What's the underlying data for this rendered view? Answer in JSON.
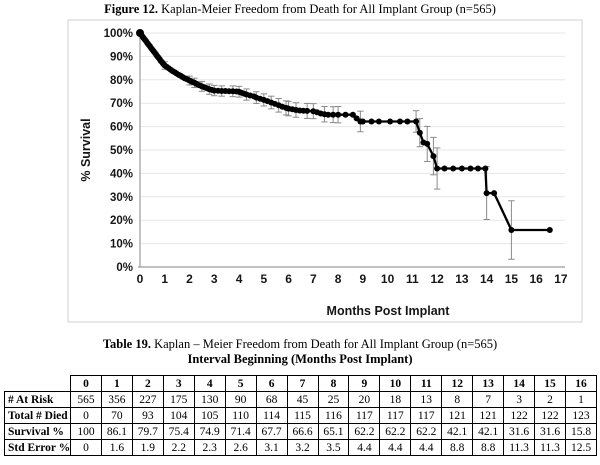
{
  "figure": {
    "title_bold": "Figure 12.",
    "title_rest": " Kaplan-Meier Freedom from Death for All Implant Group (n=565)"
  },
  "chart_data": {
    "type": "line",
    "title": "Kaplan-Meier Freedom from Death for All Implant Group (n=565)",
    "xlabel": "Months Post Implant",
    "ylabel": "% Survival",
    "xlim": [
      0,
      17
    ],
    "ylim": [
      0,
      100
    ],
    "x_ticks": [
      "0",
      "1",
      "2",
      "3",
      "4",
      "5",
      "6",
      "7",
      "8",
      "9",
      "10",
      "11",
      "12",
      "13",
      "14",
      "15",
      "16",
      "17"
    ],
    "y_ticks": [
      "0%",
      "10%",
      "20%",
      "30%",
      "40%",
      "50%",
      "60%",
      "70%",
      "80%",
      "90%",
      "100%"
    ],
    "grid": "horizontal",
    "legend": "none",
    "marker": "filled-circle",
    "line_color": "#000000",
    "error_bar_color": "#8a8a8a",
    "frame_color": "#d8d8d8",
    "axis_color": "#9b9b9b",
    "series": [
      {
        "name": "Freedom from Death (All Implant Group)",
        "point_format": "[months, survival_pct, std_error_pct?]",
        "points": [
          [
            0,
            100
          ],
          [
            0.05,
            99.2
          ],
          [
            0.1,
            98.5
          ],
          [
            0.15,
            97.8
          ],
          [
            0.2,
            97.1
          ],
          [
            0.25,
            96.4
          ],
          [
            0.3,
            95.7
          ],
          [
            0.35,
            95
          ],
          [
            0.4,
            94.3
          ],
          [
            0.45,
            93.6
          ],
          [
            0.5,
            92.9
          ],
          [
            0.55,
            92.2
          ],
          [
            0.6,
            91.5
          ],
          [
            0.65,
            90.8
          ],
          [
            0.7,
            90.1
          ],
          [
            0.75,
            89.4
          ],
          [
            0.8,
            88.7
          ],
          [
            0.85,
            88
          ],
          [
            0.9,
            87.4
          ],
          [
            0.95,
            86.7
          ],
          [
            1,
            86.1,
            1.6
          ],
          [
            1.08,
            85.5
          ],
          [
            1.16,
            84.9
          ],
          [
            1.24,
            84.3
          ],
          [
            1.32,
            83.7
          ],
          [
            1.4,
            83.2
          ],
          [
            1.48,
            82.7
          ],
          [
            1.56,
            82.2
          ],
          [
            1.64,
            81.7
          ],
          [
            1.72,
            81.2
          ],
          [
            1.8,
            80.7
          ],
          [
            1.9,
            80.2
          ],
          [
            2,
            79.7,
            1.9
          ],
          [
            2.1,
            79.2
          ],
          [
            2.2,
            78.7,
            2
          ],
          [
            2.3,
            78.2
          ],
          [
            2.4,
            77.7
          ],
          [
            2.5,
            77.2,
            2.1
          ],
          [
            2.6,
            76.8
          ],
          [
            2.7,
            76.4
          ],
          [
            2.8,
            76,
            2.2
          ],
          [
            2.9,
            75.7
          ],
          [
            3,
            75.4,
            2.2
          ],
          [
            3.15,
            75.3
          ],
          [
            3.3,
            75.2,
            2.2
          ],
          [
            3.45,
            75.2
          ],
          [
            3.6,
            75.1
          ],
          [
            3.75,
            75.1,
            2.3
          ],
          [
            3.9,
            75
          ],
          [
            4,
            74.9,
            2.3
          ],
          [
            4.1,
            74.5
          ],
          [
            4.2,
            74.1
          ],
          [
            4.3,
            73.7,
            2.4
          ],
          [
            4.45,
            73.3
          ],
          [
            4.6,
            72.9
          ],
          [
            4.7,
            72.4,
            2.5
          ],
          [
            4.85,
            71.9
          ],
          [
            5,
            71.4,
            2.6
          ],
          [
            5.15,
            70.9
          ],
          [
            5.3,
            70.3,
            2.7
          ],
          [
            5.45,
            69.7
          ],
          [
            5.6,
            69.1,
            2.9
          ],
          [
            5.75,
            68.5
          ],
          [
            5.9,
            68,
            3
          ],
          [
            6,
            67.7,
            3.1
          ],
          [
            6.15,
            67.4
          ],
          [
            6.3,
            67.1,
            3.1
          ],
          [
            6.45,
            66.9
          ],
          [
            6.6,
            66.8
          ],
          [
            6.75,
            66.7,
            3.2
          ],
          [
            7,
            66.6,
            3.2
          ],
          [
            7.15,
            66.1
          ],
          [
            7.3,
            65.6
          ],
          [
            7.45,
            65.3,
            3.3
          ],
          [
            7.6,
            65.1
          ],
          [
            7.8,
            65.1,
            3.4
          ],
          [
            8,
            65.1,
            3.5
          ],
          [
            8.3,
            65.1
          ],
          [
            8.6,
            65.1
          ],
          [
            8.75,
            63.5
          ],
          [
            8.9,
            62.2,
            4.4
          ],
          [
            9,
            62.2
          ],
          [
            9.35,
            62.2
          ],
          [
            9.65,
            62.2
          ],
          [
            10.1,
            62.2
          ],
          [
            10.5,
            62.2
          ],
          [
            10.8,
            62.2
          ],
          [
            11.15,
            62.2,
            4.6
          ],
          [
            11.3,
            57.4,
            6
          ],
          [
            11.45,
            53.2
          ],
          [
            11.6,
            52.6,
            7.5
          ],
          [
            11.85,
            47.4,
            8
          ],
          [
            12,
            42.1,
            8.8
          ],
          [
            12.3,
            42.1
          ],
          [
            12.65,
            42.1
          ],
          [
            13,
            42.1
          ],
          [
            13.35,
            42.1
          ],
          [
            13.65,
            42.1
          ],
          [
            13.95,
            42.1
          ],
          [
            14,
            31.6,
            11.3
          ],
          [
            14.3,
            31.6
          ],
          [
            15,
            15.8,
            12.5
          ],
          [
            16.55,
            15.8
          ]
        ]
      }
    ]
  },
  "table": {
    "title_bold": "Table 19.",
    "title_rest": " Kaplan – Meier Freedom from Death for All Implant Group (n=565)",
    "subtitle": "Interval Beginning (Months Post Implant)",
    "col_headers": [
      "0",
      "1",
      "2",
      "3",
      "4",
      "5",
      "6",
      "7",
      "8",
      "9",
      "10",
      "11",
      "12",
      "13",
      "14",
      "15",
      "16"
    ],
    "rows": [
      {
        "label": "# At Risk",
        "values": [
          "565",
          "356",
          "227",
          "175",
          "130",
          "90",
          "68",
          "45",
          "25",
          "20",
          "18",
          "13",
          "8",
          "7",
          "3",
          "2",
          "1"
        ]
      },
      {
        "label": "Total # Died",
        "values": [
          "0",
          "70",
          "93",
          "104",
          "105",
          "110",
          "114",
          "115",
          "116",
          "117",
          "117",
          "117",
          "121",
          "121",
          "122",
          "122",
          "123"
        ]
      },
      {
        "label": "Survival %",
        "values": [
          "100",
          "86.1",
          "79.7",
          "75.4",
          "74.9",
          "71.4",
          "67.7",
          "66.6",
          "65.1",
          "62.2",
          "62.2",
          "62.2",
          "42.1",
          "42.1",
          "31.6",
          "31.6",
          "15.8"
        ]
      },
      {
        "label": "Std Error %",
        "values": [
          "0",
          "1.6",
          "1.9",
          "2.2",
          "2.3",
          "2.6",
          "3.1",
          "3.2",
          "3.5",
          "4.4",
          "4.4",
          "4.4",
          "8.8",
          "8.8",
          "11.3",
          "11.3",
          "12.5"
        ]
      }
    ]
  }
}
